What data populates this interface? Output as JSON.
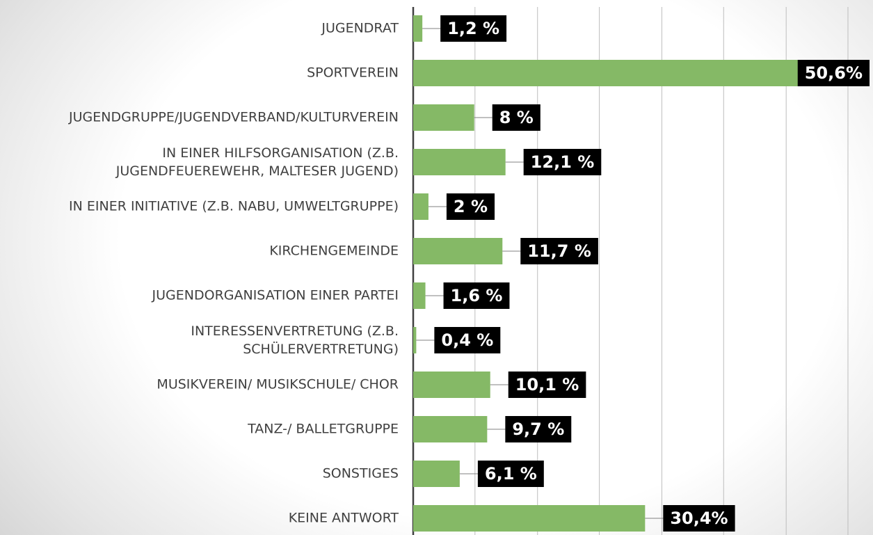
{
  "chart_data": {
    "type": "barh",
    "categories": [
      "JUGENDRAT",
      "SPORTVEREIN",
      "JUGENDGRUPPE/JUGENDVERBAND/KULTURVEREIN",
      "IN EINER HILFSORGANISATION (Z.B.\nJUGENDFEUEREWEHR, MALTESER JUGEND)",
      "IN EINER INITIATIVE (Z.B. NABU, UMWELTGRUPPE)",
      "KIRCHENGEMEINDE",
      "JUGENDORGANISATION EINER PARTEI",
      "INTERESSENVERTRETUNG (Z.B.\nSCHÜLERVERTRETUNG)",
      "MUSIKVEREIN/ MUSIKSCHULE/ CHOR",
      "TANZ-/ BALLETGRUPPE",
      "SONSTIGES",
      "KEINE ANTWORT"
    ],
    "values": [
      1.2,
      50.6,
      8,
      12.1,
      2,
      11.7,
      1.6,
      0.4,
      10.1,
      9.7,
      6.1,
      30.4
    ],
    "value_labels": [
      "1,2 %",
      "50,6%",
      "8 %",
      "12,1 %",
      "2 %",
      "11,7 %",
      "1,6 %",
      "0,4 %",
      "10,1 %",
      "9,7 %",
      "6,1 %",
      "30,4%"
    ],
    "color": "#85b966",
    "xlim": [
      0,
      57
    ],
    "xticks": [
      0,
      8.1,
      16.3,
      24.4,
      32.6,
      40.7,
      48.9,
      57
    ],
    "grid": true
  }
}
